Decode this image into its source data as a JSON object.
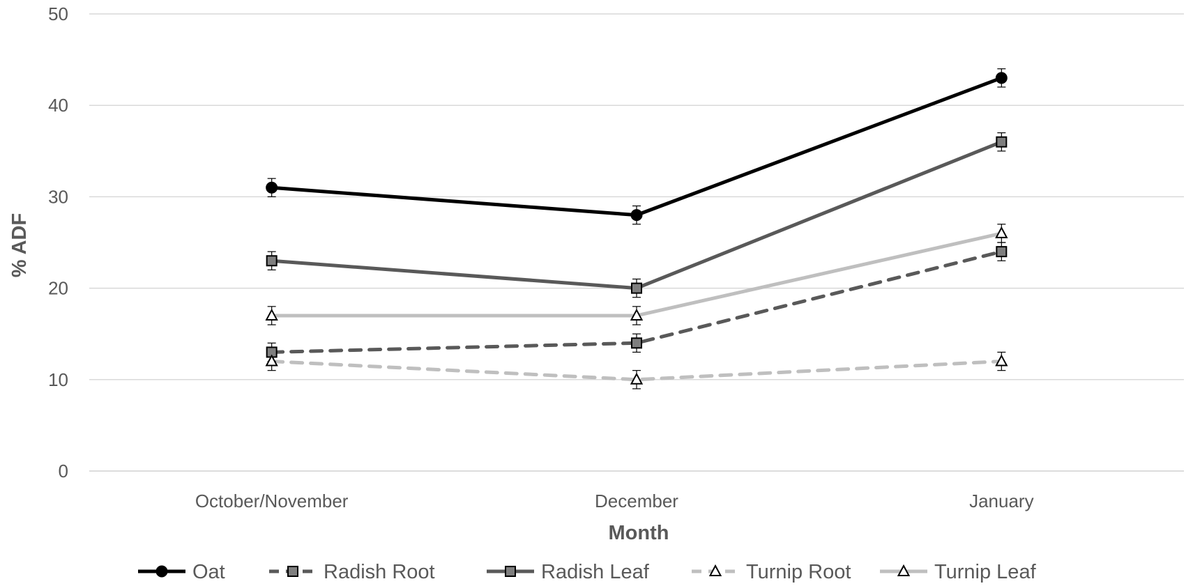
{
  "chart_data": {
    "type": "line",
    "title": "",
    "xlabel": "Month",
    "ylabel": "% ADF",
    "categories": [
      "October/November",
      "December",
      "January"
    ],
    "ylim": [
      0,
      50
    ],
    "yticks": [
      0,
      10,
      20,
      30,
      40,
      50
    ],
    "grid": true,
    "legend_position": "bottom",
    "error_bar": 1,
    "series": [
      {
        "name": "Oat",
        "values": [
          31,
          28,
          43
        ],
        "color": "#000000",
        "dash": "solid",
        "marker": "circle",
        "marker_fill": "#000000"
      },
      {
        "name": "Radish Root",
        "values": [
          13,
          14,
          24
        ],
        "color": "#595959",
        "dash": "dashed",
        "marker": "square",
        "marker_fill": "#7f7f7f"
      },
      {
        "name": "Radish Leaf",
        "values": [
          23,
          20,
          36
        ],
        "color": "#595959",
        "dash": "solid",
        "marker": "square",
        "marker_fill": "#7f7f7f"
      },
      {
        "name": "Turnip Root",
        "values": [
          12,
          10,
          12
        ],
        "color": "#bfbfbf",
        "dash": "dashed",
        "marker": "triangle",
        "marker_fill": "#ffffff"
      },
      {
        "name": "Turnip Leaf",
        "values": [
          17,
          17,
          26
        ],
        "color": "#bfbfbf",
        "dash": "solid",
        "marker": "triangle",
        "marker_fill": "#ffffff"
      }
    ]
  }
}
